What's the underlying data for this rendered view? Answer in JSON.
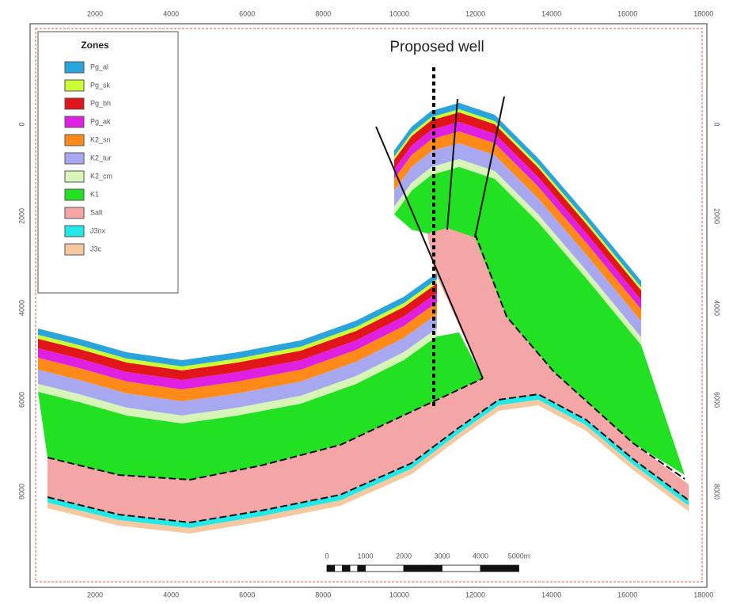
{
  "title": "Proposed well",
  "legend": {
    "title": "Zones",
    "zones": [
      {
        "label": "Pg_al",
        "color": "#2aa4dc"
      },
      {
        "label": "Pg_sk",
        "color": "#ccff33"
      },
      {
        "label": "Pg_bh",
        "color": "#e0161b"
      },
      {
        "label": "Pg_ak",
        "color": "#e020e0"
      },
      {
        "label": "K2_sn",
        "color": "#ff8a1a"
      },
      {
        "label": "K2_tur",
        "color": "#a8a8f0"
      },
      {
        "label": "K2_cm",
        "color": "#d8f5b8"
      },
      {
        "label": "K1",
        "color": "#22e022"
      },
      {
        "label": "Salt",
        "color": "#f4a6a6"
      },
      {
        "label": "J3ox",
        "color": "#22e8e8"
      },
      {
        "label": "J3c",
        "color": "#f5c8a0"
      }
    ]
  },
  "axes": {
    "top": [
      "2000",
      "4000",
      "6000",
      "8000",
      "10000",
      "12000",
      "14000",
      "16000",
      "18000"
    ],
    "bottom": [
      "2000",
      "4000",
      "6000",
      "8000",
      "10000",
      "12000",
      "14000",
      "16000",
      "18000"
    ],
    "left": [
      "0",
      "2000",
      "4000",
      "6000",
      "8000"
    ],
    "right": [
      "0",
      "2000",
      "4000",
      "6000",
      "8000"
    ]
  },
  "scale_bar": [
    "0",
    "1000",
    "2000",
    "3000",
    "4000",
    "5000m"
  ]
}
